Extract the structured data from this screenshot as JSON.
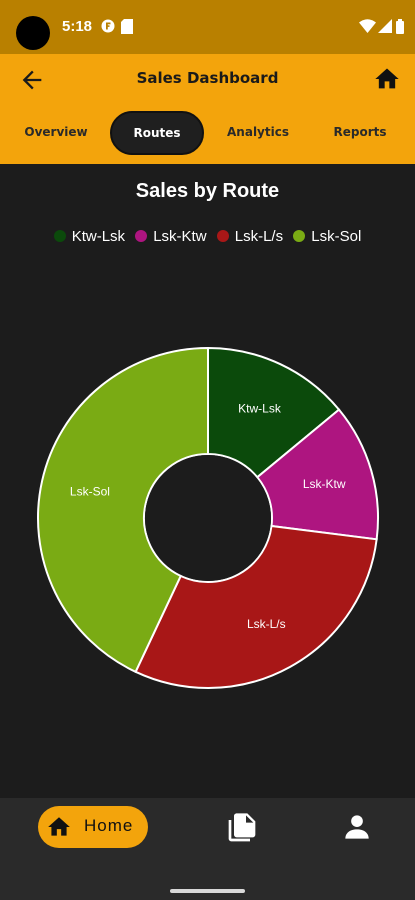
{
  "status_bar": {
    "time": "5:18"
  },
  "header": {
    "title": "Sales Dashboard",
    "tabs": [
      {
        "label": "Overview",
        "active": false
      },
      {
        "label": "Routes",
        "active": true
      },
      {
        "label": "Analytics",
        "active": false
      },
      {
        "label": "Reports",
        "active": false
      }
    ]
  },
  "colors": {
    "accent": "#f3a40c",
    "status_bar": "#b98000",
    "background": "#1c1c1c"
  },
  "chart_data": {
    "type": "pie",
    "donut": true,
    "title": "Sales by Route",
    "legend_placement": "top",
    "series": [
      {
        "name": "Ktw-Lsk",
        "value": 14,
        "color": "#0b4a0b"
      },
      {
        "name": "Lsk-Ktw",
        "value": 13,
        "color": "#ae1580"
      },
      {
        "name": "Lsk-L/s",
        "value": 30,
        "color": "#a81717"
      },
      {
        "name": "Lsk-Sol",
        "value": 43,
        "color": "#7aab14"
      }
    ]
  },
  "bottom_nav": {
    "home_label": "Home",
    "items": [
      "home-icon",
      "documents-icon",
      "profile-icon"
    ]
  }
}
